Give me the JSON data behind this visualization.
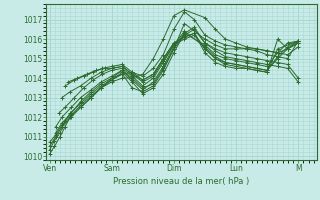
{
  "bg_color": "#c8ebe8",
  "grid_color": "#a8d8d4",
  "line_color": "#2d6a2d",
  "marker": "+",
  "marker_size": 3,
  "xlabel": "Pression niveau de la mer( hPa )",
  "xlabel_color": "#2d6a2d",
  "tick_color": "#2d6a2d",
  "ylim": [
    1009.8,
    1017.8
  ],
  "yticks": [
    1010,
    1011,
    1012,
    1013,
    1014,
    1015,
    1016,
    1017
  ],
  "xtick_labels": [
    "Ven",
    "Sam",
    "Dim",
    "Lun",
    "M"
  ],
  "xtick_positions": [
    0,
    1,
    2,
    3,
    4
  ],
  "xlim": [
    -0.05,
    4.3
  ],
  "series": [
    {
      "x": [
        0.0,
        0.08,
        0.17,
        0.25,
        0.33,
        0.5,
        0.67,
        0.83,
        1.0,
        1.17,
        1.33,
        1.5,
        1.67,
        1.83,
        2.0,
        2.17,
        2.5,
        2.67,
        2.83,
        3.0,
        3.17,
        3.33,
        3.5,
        3.67,
        3.83,
        4.0
      ],
      "y": [
        1010.1,
        1010.5,
        1011.0,
        1011.5,
        1012.0,
        1012.5,
        1013.0,
        1013.5,
        1013.8,
        1014.0,
        1014.0,
        1014.2,
        1015.0,
        1016.0,
        1017.2,
        1017.5,
        1017.1,
        1016.5,
        1016.0,
        1015.8,
        1015.6,
        1015.5,
        1015.4,
        1015.3,
        1015.5,
        1015.8
      ]
    },
    {
      "x": [
        0.0,
        0.08,
        0.17,
        0.25,
        0.33,
        0.5,
        0.67,
        0.83,
        1.0,
        1.17,
        1.33,
        1.5,
        1.67,
        1.83,
        2.0,
        2.17,
        2.33,
        2.5,
        2.67,
        2.83,
        3.0,
        3.17,
        3.33,
        3.5,
        3.67,
        3.83,
        4.0
      ],
      "y": [
        1010.3,
        1010.8,
        1011.2,
        1011.8,
        1012.2,
        1012.7,
        1013.2,
        1013.6,
        1013.9,
        1014.2,
        1014.3,
        1014.1,
        1014.5,
        1015.2,
        1016.5,
        1017.4,
        1017.0,
        1016.2,
        1015.9,
        1015.7,
        1015.6,
        1015.5,
        1015.4,
        1015.2,
        1015.1,
        1015.0,
        1015.9
      ]
    },
    {
      "x": [
        0.0,
        0.1,
        0.2,
        0.35,
        0.5,
        0.67,
        0.83,
        1.0,
        1.17,
        1.33,
        1.5,
        1.67,
        1.83,
        2.0,
        2.17,
        2.5,
        2.67,
        2.83,
        3.0,
        3.17,
        3.33,
        3.5,
        3.67,
        3.83,
        4.0
      ],
      "y": [
        1010.5,
        1011.0,
        1011.5,
        1012.0,
        1012.5,
        1013.0,
        1013.5,
        1014.0,
        1014.2,
        1013.5,
        1013.3,
        1013.6,
        1014.4,
        1015.5,
        1016.8,
        1016.0,
        1015.7,
        1015.5,
        1015.5,
        1015.5,
        1015.5,
        1015.4,
        1015.3,
        1015.2,
        1015.6
      ]
    },
    {
      "x": [
        0.0,
        0.1,
        0.2,
        0.35,
        0.5,
        0.67,
        0.83,
        1.0,
        1.17,
        1.33,
        1.5,
        1.67,
        1.83,
        2.0,
        2.17,
        2.33,
        2.5,
        2.67,
        2.83,
        3.0,
        3.17,
        3.33,
        3.5,
        3.67,
        3.83,
        4.0
      ],
      "y": [
        1010.7,
        1011.1,
        1011.6,
        1012.1,
        1012.6,
        1013.1,
        1013.5,
        1013.9,
        1014.3,
        1013.8,
        1013.2,
        1013.5,
        1014.2,
        1015.3,
        1016.3,
        1016.6,
        1015.8,
        1015.5,
        1015.3,
        1015.2,
        1015.1,
        1015.0,
        1014.9,
        1014.8,
        1014.7,
        1014.0
      ]
    },
    {
      "x": [
        0.1,
        0.2,
        0.35,
        0.5,
        0.67,
        0.83,
        1.0,
        1.17,
        1.33,
        1.5,
        1.67,
        1.83,
        2.0,
        2.17,
        2.33,
        2.5,
        2.67,
        2.83,
        3.0,
        3.17,
        3.33,
        3.5,
        3.67,
        3.83,
        4.0
      ],
      "y": [
        1011.2,
        1011.7,
        1012.2,
        1012.8,
        1013.3,
        1013.7,
        1014.0,
        1014.4,
        1014.0,
        1013.5,
        1013.7,
        1014.5,
        1015.5,
        1016.2,
        1016.5,
        1015.8,
        1015.4,
        1015.1,
        1015.0,
        1014.9,
        1014.8,
        1014.7,
        1014.6,
        1014.5,
        1013.8
      ]
    },
    {
      "x": [
        0.1,
        0.2,
        0.35,
        0.5,
        0.67,
        0.83,
        1.0,
        1.17,
        1.33,
        1.5,
        1.67,
        1.83,
        2.0,
        2.17,
        2.5,
        2.67,
        2.83,
        3.0,
        3.17,
        3.33,
        3.5,
        3.67,
        3.83,
        4.0
      ],
      "y": [
        1011.5,
        1012.0,
        1012.5,
        1013.0,
        1013.4,
        1013.8,
        1014.1,
        1014.4,
        1013.9,
        1013.4,
        1013.8,
        1014.6,
        1015.6,
        1016.3,
        1015.7,
        1015.2,
        1015.0,
        1014.9,
        1014.8,
        1014.7,
        1014.6,
        1015.3,
        1015.8,
        1015.9
      ]
    },
    {
      "x": [
        0.15,
        0.25,
        0.4,
        0.55,
        0.7,
        0.85,
        1.0,
        1.17,
        1.33,
        1.5,
        1.67,
        1.83,
        2.0,
        2.17,
        2.5,
        2.67,
        2.83,
        3.0,
        3.17,
        3.33,
        3.5,
        3.67,
        3.83,
        4.0
      ],
      "y": [
        1012.2,
        1012.5,
        1013.0,
        1013.5,
        1013.9,
        1014.2,
        1014.4,
        1014.5,
        1014.1,
        1013.6,
        1014.0,
        1014.8,
        1015.7,
        1016.4,
        1015.6,
        1015.1,
        1014.8,
        1014.7,
        1014.6,
        1014.5,
        1014.4,
        1015.1,
        1015.6,
        1015.9
      ]
    },
    {
      "x": [
        0.2,
        0.33,
        0.5,
        0.67,
        0.83,
        1.0,
        1.17,
        1.33,
        1.5,
        1.67,
        1.83,
        2.0,
        2.17,
        2.33,
        2.5,
        2.67,
        2.83,
        3.0,
        3.17,
        3.33,
        3.5,
        3.67,
        3.83,
        4.0
      ],
      "y": [
        1013.0,
        1013.3,
        1013.6,
        1014.0,
        1014.3,
        1014.5,
        1014.6,
        1014.2,
        1013.8,
        1014.1,
        1014.9,
        1015.7,
        1016.0,
        1016.2,
        1015.5,
        1015.0,
        1014.8,
        1014.7,
        1014.6,
        1014.5,
        1014.4,
        1015.0,
        1015.5,
        1015.9
      ]
    },
    {
      "x": [
        0.25,
        0.4,
        0.55,
        0.7,
        0.85,
        1.0,
        1.17,
        1.33,
        1.5,
        1.67,
        1.83,
        2.0,
        2.17,
        2.33,
        2.5,
        2.67,
        2.83,
        3.0,
        3.17,
        3.33,
        3.5,
        3.67,
        4.0
      ],
      "y": [
        1013.6,
        1013.9,
        1014.1,
        1014.3,
        1014.5,
        1014.6,
        1014.7,
        1014.3,
        1013.9,
        1014.2,
        1015.0,
        1015.8,
        1016.1,
        1016.3,
        1015.5,
        1015.0,
        1014.7,
        1014.6,
        1014.5,
        1014.4,
        1014.3,
        1015.5,
        1015.9
      ]
    },
    {
      "x": [
        0.3,
        0.45,
        0.6,
        0.75,
        0.9,
        1.0,
        1.17,
        1.33,
        1.5,
        1.67,
        1.83,
        2.0,
        2.17,
        2.33,
        2.5,
        2.67,
        2.83,
        3.0,
        3.17,
        3.33,
        3.5,
        3.67,
        3.83,
        4.0
      ],
      "y": [
        1013.8,
        1014.0,
        1014.2,
        1014.4,
        1014.5,
        1014.5,
        1014.6,
        1014.2,
        1013.9,
        1014.2,
        1015.0,
        1015.8,
        1016.1,
        1016.3,
        1015.3,
        1014.8,
        1014.6,
        1014.5,
        1014.5,
        1014.4,
        1014.3,
        1016.0,
        1015.5,
        1015.8
      ]
    }
  ]
}
